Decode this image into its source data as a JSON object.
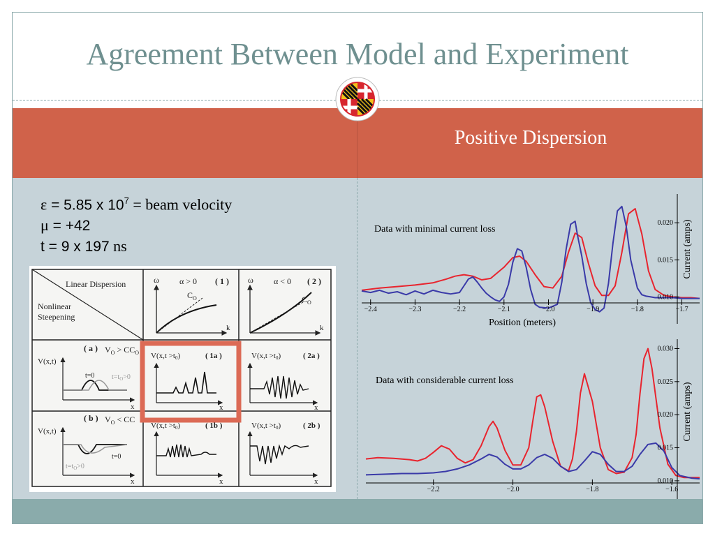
{
  "slide": {
    "title": "Agreement Between Model and Experiment",
    "subtitle": "Positive Dispersion",
    "colors": {
      "title": "#6f9090",
      "band": "#d0624a",
      "content_bg": "#c6d3d9",
      "footer": "#8aabab"
    }
  },
  "params": {
    "line1_symbol": "ε",
    "line1_mid": " = 5.85 x 10",
    "line1_exp": "7",
    "line1_tail": " = beam velocity",
    "line2_symbol": "μ",
    "line2_value": " = +42",
    "line3_prefix": "t = 9 x 197",
    "line3_unit": " ns"
  },
  "scan": {
    "linear": "Linear Dispersion",
    "nonlinear1": "Nonlinear",
    "nonlinear2": "Steepening",
    "omega": "ω",
    "alpha_gt": "α > 0",
    "alpha_lt": "α < 0",
    "p1": "( 1 )",
    "p2": "( 2 )",
    "co": "C",
    "co_sub": "O",
    "k": "k",
    "a": "( a )",
    "b": "( b )",
    "va": "V",
    "va_sub": "O",
    "va_rel": " > C",
    "vb_rel": " < C",
    "vxt": "V(x,t)",
    "vxt0": "V(x,t >t",
    "vxt0_sub": "0",
    "vxt0_close": ")",
    "l1a": "( 1a )",
    "l2a": "( 2a )",
    "l1b": "( 1b )",
    "l2b": "( 2b )",
    "t0": "t=0",
    "tt0": "t=t",
    "tt0_rel": ">0",
    "x": "x"
  },
  "chart_data": [
    {
      "type": "line",
      "annotation": "Data with minimal current loss",
      "xlabel": "Position (meters)",
      "ylabel": "Current (amps)",
      "xlim": [
        -2.42,
        -1.66
      ],
      "ylim": [
        0.0075,
        0.0235
      ],
      "xticks": [
        -2.4,
        -2.3,
        -2.2,
        -2.1,
        -2.0,
        -1.9,
        -1.8,
        -1.7
      ],
      "xtick_labels": [
        "−2.4",
        "−2.3",
        "−2.2",
        "−2.1",
        "−2.0",
        "−1.9",
        "−1.8",
        "−1.7"
      ],
      "yticks": [
        0.01,
        0.015,
        0.02
      ],
      "ytick_labels": [
        "0.010",
        "0.015",
        "0.020"
      ],
      "series": [
        {
          "color": "#e8242e",
          "x": [
            -2.42,
            -2.38,
            -2.34,
            -2.3,
            -2.26,
            -2.23,
            -2.21,
            -2.19,
            -2.17,
            -2.15,
            -2.13,
            -2.1,
            -2.08,
            -2.065,
            -2.05,
            -2.03,
            -2.01,
            -1.99,
            -1.97,
            -1.955,
            -1.94,
            -1.925,
            -1.91,
            -1.895,
            -1.88,
            -1.865,
            -1.85,
            -1.835,
            -1.82,
            -1.805,
            -1.79,
            -1.775,
            -1.76,
            -1.74,
            -1.72,
            -1.7,
            -1.68,
            -1.66
          ],
          "y": [
            0.0109,
            0.0112,
            0.0114,
            0.0116,
            0.0119,
            0.0124,
            0.0128,
            0.013,
            0.0128,
            0.0123,
            0.0125,
            0.014,
            0.0153,
            0.0155,
            0.0148,
            0.013,
            0.0114,
            0.0112,
            0.0128,
            0.016,
            0.0186,
            0.018,
            0.0145,
            0.0115,
            0.0102,
            0.0102,
            0.0115,
            0.016,
            0.0212,
            0.0219,
            0.0185,
            0.0135,
            0.011,
            0.0102,
            0.01,
            0.0099,
            0.0099,
            0.0098
          ]
        },
        {
          "color": "#3a3aa8",
          "x": [
            -2.42,
            -2.4,
            -2.38,
            -2.36,
            -2.34,
            -2.32,
            -2.3,
            -2.28,
            -2.26,
            -2.24,
            -2.22,
            -2.2,
            -2.19,
            -2.18,
            -2.17,
            -2.16,
            -2.15,
            -2.14,
            -2.13,
            -2.12,
            -2.11,
            -2.1,
            -2.09,
            -2.08,
            -2.07,
            -2.06,
            -2.05,
            -2.04,
            -2.03,
            -2.02,
            -2.0,
            -1.98,
            -1.97,
            -1.96,
            -1.95,
            -1.94,
            -1.935,
            -1.925,
            -1.915,
            -1.905,
            -1.895,
            -1.885,
            -1.875,
            -1.865,
            -1.855,
            -1.845,
            -1.835,
            -1.825,
            -1.815,
            -1.8,
            -1.79,
            -1.78,
            -1.77,
            -1.76,
            -1.74,
            -1.72,
            -1.7,
            -1.68,
            -1.66
          ],
          "y": [
            0.0108,
            0.0106,
            0.0109,
            0.0105,
            0.0107,
            0.0103,
            0.0108,
            0.0104,
            0.0109,
            0.0106,
            0.0104,
            0.0106,
            0.0115,
            0.0124,
            0.0127,
            0.012,
            0.0112,
            0.0105,
            0.01,
            0.0096,
            0.0094,
            0.01,
            0.0117,
            0.0147,
            0.0165,
            0.0162,
            0.014,
            0.011,
            0.009,
            0.0086,
            0.0085,
            0.009,
            0.012,
            0.0165,
            0.0198,
            0.0202,
            0.0184,
            0.0155,
            0.0118,
            0.0092,
            0.0083,
            0.008,
            0.0085,
            0.0118,
            0.0172,
            0.0216,
            0.0222,
            0.0195,
            0.015,
            0.0112,
            0.0103,
            0.0101,
            0.01,
            0.0099,
            0.0099,
            0.0099,
            0.0098,
            0.0098,
            0.0098
          ]
        }
      ]
    },
    {
      "type": "line",
      "annotation": "Data with considerable current loss",
      "ylabel": "Current (amps)",
      "xlim": [
        -2.37,
        -1.53
      ],
      "ylim": [
        0.0083,
        0.031
      ],
      "xticks": [
        -2.2,
        -2.0,
        -1.8,
        -1.6
      ],
      "xtick_labels": [
        "−2.2",
        "−2.0",
        "−1.8",
        "−1.6"
      ],
      "yticks": [
        0.01,
        0.015,
        0.02,
        0.025,
        0.03
      ],
      "ytick_labels": [
        "0.010",
        "0.015",
        "0.020",
        "0.025",
        "0.030"
      ],
      "series": [
        {
          "color": "#e8242e",
          "x": [
            -2.37,
            -2.34,
            -2.3,
            -2.26,
            -2.24,
            -2.22,
            -2.2,
            -2.18,
            -2.16,
            -2.14,
            -2.12,
            -2.1,
            -2.08,
            -2.06,
            -2.05,
            -2.04,
            -2.02,
            -2.0,
            -1.98,
            -1.96,
            -1.95,
            -1.94,
            -1.93,
            -1.92,
            -1.9,
            -1.88,
            -1.86,
            -1.85,
            -1.84,
            -1.83,
            -1.82,
            -1.8,
            -1.78,
            -1.76,
            -1.74,
            -1.72,
            -1.7,
            -1.69,
            -1.68,
            -1.67,
            -1.66,
            -1.65,
            -1.63,
            -1.61,
            -1.59,
            -1.57,
            -1.55,
            -1.53
          ],
          "y": [
            0.0133,
            0.0135,
            0.0134,
            0.0132,
            0.013,
            0.0134,
            0.0143,
            0.0153,
            0.0148,
            0.0134,
            0.0127,
            0.0132,
            0.0153,
            0.0182,
            0.019,
            0.018,
            0.0146,
            0.0124,
            0.0124,
            0.015,
            0.019,
            0.0227,
            0.023,
            0.0212,
            0.016,
            0.0122,
            0.0115,
            0.0133,
            0.0175,
            0.0233,
            0.0262,
            0.022,
            0.015,
            0.0117,
            0.0111,
            0.0113,
            0.0135,
            0.017,
            0.0232,
            0.0285,
            0.03,
            0.027,
            0.018,
            0.0125,
            0.0108,
            0.0105,
            0.0105,
            0.0105
          ]
        },
        {
          "color": "#3a3aa8",
          "x": [
            -2.37,
            -2.32,
            -2.28,
            -2.24,
            -2.2,
            -2.17,
            -2.14,
            -2.11,
            -2.08,
            -2.06,
            -2.04,
            -2.02,
            -2.0,
            -1.98,
            -1.96,
            -1.94,
            -1.92,
            -1.9,
            -1.88,
            -1.86,
            -1.84,
            -1.82,
            -1.8,
            -1.78,
            -1.76,
            -1.74,
            -1.72,
            -1.7,
            -1.68,
            -1.66,
            -1.64,
            -1.62,
            -1.6,
            -1.58,
            -1.55,
            -1.53
          ],
          "y": [
            0.0109,
            0.011,
            0.0111,
            0.0111,
            0.0112,
            0.0114,
            0.0118,
            0.0124,
            0.0133,
            0.014,
            0.0136,
            0.0125,
            0.0118,
            0.0118,
            0.0124,
            0.0135,
            0.014,
            0.0134,
            0.0122,
            0.0114,
            0.0117,
            0.013,
            0.0144,
            0.014,
            0.0125,
            0.0114,
            0.0114,
            0.0122,
            0.014,
            0.0155,
            0.0157,
            0.0145,
            0.012,
            0.0108,
            0.0104,
            0.0103
          ]
        }
      ]
    }
  ]
}
